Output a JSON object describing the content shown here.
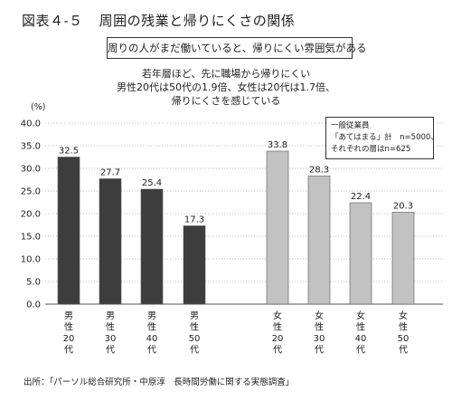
{
  "figure": {
    "number": "図表４-５",
    "title": "周囲の残業と帰りにくさの関係"
  },
  "subtitle": "周りの人がまだ働いていると、帰りにくい雰囲気がある",
  "note_lines": [
    "若年層ほど、先に職場から帰りにくい",
    "男性20代は50代の1.9倍、女性は20代は1.7倍、",
    "帰りにくさを感じている"
  ],
  "legend": {
    "title": "一般従業員",
    "line1": "「あてはまる」計　n=5000、",
    "line2": "それぞれの層はn=625"
  },
  "source": "出所：「パーソル総合研究所・中原淳　長時間労働に関する実態調査」",
  "colors": {
    "male_bar": "#3d3d3d",
    "female_bar": "#c2c2c2",
    "bar_edge": "#555555"
  },
  "chart_data": {
    "type": "bar",
    "unit": "(%)",
    "ylim": [
      0,
      40
    ],
    "yticks": [
      "0.0",
      "5.0",
      "10.0",
      "15.0",
      "20.0",
      "25.0",
      "30.0",
      "35.0",
      "40.0"
    ],
    "categories": [
      "男性20代",
      "男性30代",
      "男性40代",
      "男性50代",
      "女性20代",
      "女性30代",
      "女性40代",
      "女性50代"
    ],
    "values": [
      32.5,
      27.7,
      25.4,
      17.3,
      33.8,
      28.3,
      22.4,
      20.3
    ],
    "value_labels": [
      "32.5",
      "27.7",
      "25.4",
      "17.3",
      "33.8",
      "28.3",
      "22.4",
      "20.3"
    ],
    "groups": [
      "male",
      "male",
      "male",
      "male",
      "female",
      "female",
      "female",
      "female"
    ],
    "grid": true
  }
}
